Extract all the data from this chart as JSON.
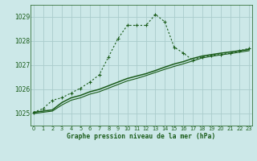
{
  "title": "Graphe pression niveau de la mer (hPa)",
  "bg_color": "#cce8e8",
  "grid_color": "#aacccc",
  "line_color": "#1a5c1a",
  "x_ticks": [
    0,
    1,
    2,
    3,
    4,
    5,
    6,
    7,
    8,
    9,
    10,
    11,
    12,
    13,
    14,
    15,
    16,
    17,
    18,
    19,
    20,
    21,
    22,
    23
  ],
  "y_ticks": [
    1025,
    1026,
    1027,
    1028,
    1029
  ],
  "ylim": [
    1024.5,
    1029.5
  ],
  "xlim": [
    -0.3,
    23.3
  ],
  "series1_x": [
    0,
    1,
    2,
    3,
    4,
    5,
    6,
    7,
    8,
    9,
    10,
    11,
    12,
    13,
    14,
    15,
    16,
    17,
    18,
    19,
    20,
    21,
    22,
    23
  ],
  "series1_y": [
    1025.05,
    1025.2,
    1025.55,
    1025.65,
    1025.85,
    1026.05,
    1026.3,
    1026.6,
    1027.35,
    1028.1,
    1028.65,
    1028.65,
    1028.65,
    1029.1,
    1028.8,
    1027.75,
    1027.5,
    1027.2,
    1027.35,
    1027.4,
    1027.45,
    1027.5,
    1027.6,
    1027.7
  ],
  "series2_x": [
    0,
    1,
    2,
    3,
    4,
    5,
    6,
    7,
    8,
    9,
    10,
    11,
    12,
    13,
    14,
    15,
    16,
    17,
    18,
    19,
    20,
    21,
    22,
    23
  ],
  "series2_y": [
    1025.05,
    1025.1,
    1025.15,
    1025.45,
    1025.65,
    1025.75,
    1025.9,
    1026.0,
    1026.15,
    1026.3,
    1026.45,
    1026.55,
    1026.65,
    1026.78,
    1026.92,
    1027.05,
    1027.15,
    1027.28,
    1027.38,
    1027.44,
    1027.5,
    1027.55,
    1027.6,
    1027.65
  ],
  "series3_x": [
    0,
    1,
    2,
    3,
    4,
    5,
    6,
    7,
    8,
    9,
    10,
    11,
    12,
    13,
    14,
    15,
    16,
    17,
    18,
    19,
    20,
    21,
    22,
    23
  ],
  "series3_y": [
    1025.0,
    1025.05,
    1025.1,
    1025.35,
    1025.55,
    1025.65,
    1025.8,
    1025.9,
    1026.05,
    1026.2,
    1026.35,
    1026.45,
    1026.57,
    1026.7,
    1026.83,
    1026.95,
    1027.06,
    1027.18,
    1027.3,
    1027.37,
    1027.43,
    1027.48,
    1027.54,
    1027.6
  ]
}
